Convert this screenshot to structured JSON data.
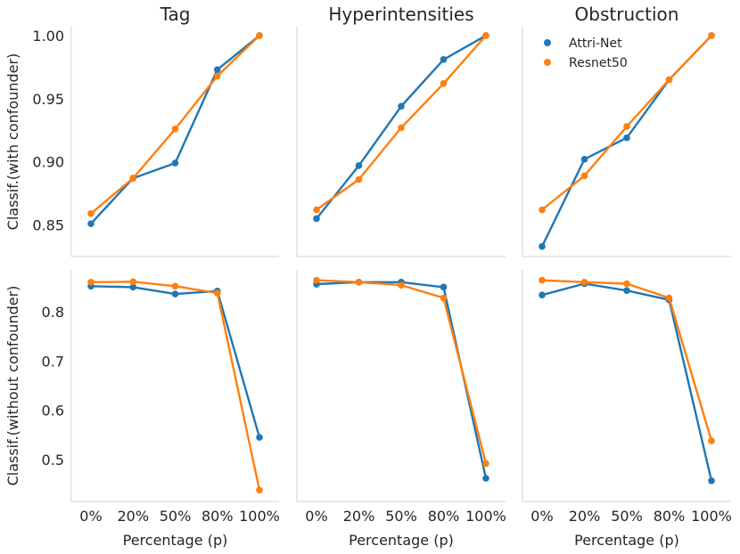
{
  "chart_data": {
    "type": "line",
    "categories": [
      "0%",
      "20%",
      "50%",
      "80%",
      "100%"
    ],
    "xlabel": "Percentage (p)",
    "colors": {
      "Attri-Net": "#1f77b4",
      "Resnet50": "#ff7f0e"
    },
    "legend": {
      "location": "top-right of Obstruction panel",
      "entries": [
        "Attri-Net",
        "Resnet50"
      ]
    },
    "columns": [
      "Tag",
      "Hyperintensities",
      "Obstruction"
    ],
    "rows": [
      {
        "ylabel": "Classif.(with confounder)",
        "ylim": [
          0.825,
          1.007
        ],
        "yticks": [
          0.85,
          0.9,
          0.95,
          1.0
        ],
        "ytick_labels": [
          "0.85",
          "0.90",
          "0.95",
          "1.00"
        ],
        "panels": [
          {
            "title": "Tag",
            "series": [
              {
                "name": "Attri-Net",
                "values": [
                  0.851,
                  0.887,
                  0.899,
                  0.973,
                  1.0
                ]
              },
              {
                "name": "Resnet50",
                "values": [
                  0.859,
                  0.887,
                  0.926,
                  0.968,
                  1.0
                ]
              }
            ]
          },
          {
            "title": "Hyperintensities",
            "series": [
              {
                "name": "Attri-Net",
                "values": [
                  0.855,
                  0.897,
                  0.944,
                  0.981,
                  1.0
                ]
              },
              {
                "name": "Resnet50",
                "values": [
                  0.862,
                  0.886,
                  0.927,
                  0.962,
                  1.0
                ]
              }
            ]
          },
          {
            "title": "Obstruction",
            "series": [
              {
                "name": "Attri-Net",
                "values": [
                  0.833,
                  0.902,
                  0.919,
                  0.965,
                  1.0
                ]
              },
              {
                "name": "Resnet50",
                "values": [
                  0.862,
                  0.889,
                  0.928,
                  0.965,
                  1.0
                ]
              }
            ]
          }
        ]
      },
      {
        "ylabel": "Classif.(without confounder)",
        "ylim": [
          0.415,
          0.885
        ],
        "yticks": [
          0.5,
          0.6,
          0.7,
          0.8
        ],
        "ytick_labels": [
          "0.5",
          "0.6",
          "0.7",
          "0.8"
        ],
        "panels": [
          {
            "title": "Tag",
            "series": [
              {
                "name": "Attri-Net",
                "values": [
                  0.852,
                  0.85,
                  0.836,
                  0.842,
                  0.545
                ]
              },
              {
                "name": "Resnet50",
                "values": [
                  0.86,
                  0.861,
                  0.852,
                  0.838,
                  0.438
                ]
              }
            ]
          },
          {
            "title": "Hyperintensities",
            "series": [
              {
                "name": "Attri-Net",
                "values": [
                  0.856,
                  0.86,
                  0.86,
                  0.85,
                  0.462
                ]
              },
              {
                "name": "Resnet50",
                "values": [
                  0.864,
                  0.86,
                  0.854,
                  0.828,
                  0.492
                ]
              }
            ]
          },
          {
            "title": "Obstruction",
            "series": [
              {
                "name": "Attri-Net",
                "values": [
                  0.834,
                  0.857,
                  0.843,
                  0.824,
                  0.457
                ]
              },
              {
                "name": "Resnet50",
                "values": [
                  0.864,
                  0.86,
                  0.857,
                  0.828,
                  0.538
                ]
              }
            ]
          }
        ]
      }
    ]
  }
}
